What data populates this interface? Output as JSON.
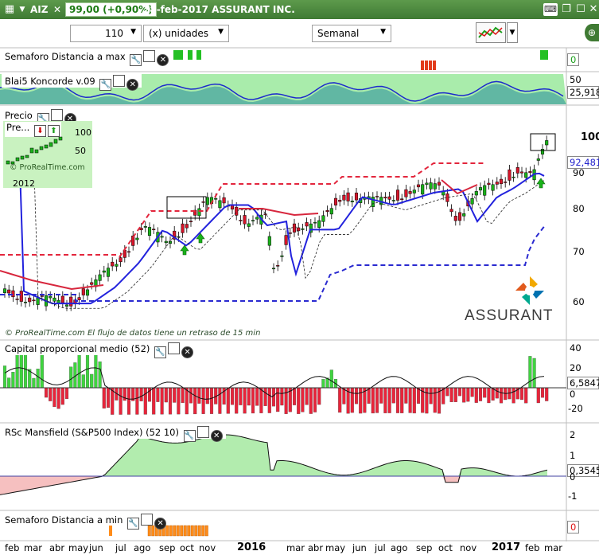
{
  "title_bar": {
    "symbol": "AIZ",
    "price": "99,00 (+0,90%)",
    "date_name": "28-feb-2017 ASSURANT INC."
  },
  "toolbar": {
    "units_value": "110",
    "units_type": "(x) unidades",
    "period": "Semanal"
  },
  "panels": {
    "semaforo_max": "Semaforo Distancia a max",
    "koncorde": "Blai5 Koncorde v.09",
    "precio": "Precio",
    "capital": "Capital proporcional medio (52)",
    "mansfield": "RSc Mansfield (S&P500 Index) (52 10)",
    "semaforo_min": "Semaforo Distancia a min"
  },
  "inset": {
    "label": "Pre...",
    "val_100": "100",
    "val_50": "50",
    "year": "2012",
    "watermark": "© ProRealTime.com"
  },
  "footer_note": "© ProRealTime.com  El flujo de datos tiene un retraso de 15 min",
  "company": "ASSURANT",
  "axes": {
    "semaforo_max": [
      "0"
    ],
    "koncorde": [
      "50",
      "25,918"
    ],
    "precio": [
      "100",
      "92,481",
      "90",
      "80",
      "70",
      "60"
    ],
    "capital": [
      "40",
      "20",
      "6,5847",
      "0",
      "-20"
    ],
    "mansfield": [
      "2",
      "1",
      "0,3545",
      "0",
      "-1"
    ],
    "semaforo_min": [
      "0"
    ]
  },
  "months": [
    "feb",
    "mar",
    "abr",
    "may",
    "jun",
    "jul",
    "ago",
    "sep",
    "oct",
    "nov",
    "2016",
    "mar",
    "abr",
    "may",
    "jun",
    "jul",
    "ago",
    "sep",
    "oct",
    "nov",
    "2017",
    "feb",
    "mar"
  ],
  "colors": {
    "accent_green": "#3f7a33",
    "up_candle": "#19b219",
    "down_candle": "#d7152a",
    "ma_blue": "#2222dd"
  }
}
